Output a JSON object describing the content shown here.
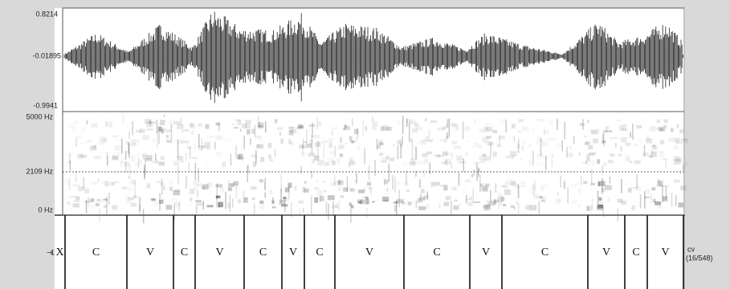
{
  "waveform": {
    "max_label": "0.8214",
    "mid_label": "-0.01895",
    "min_label": "-0.9941"
  },
  "spectrogram": {
    "top_label": "5000 Hz",
    "cursor_label": "2109 Hz",
    "bottom_label": "0 Hz"
  },
  "tier": {
    "number": "1",
    "name": "cv",
    "count": "(16/548)",
    "intervals": [
      "X",
      "C",
      "V",
      "C",
      "V",
      "C",
      "V",
      "C",
      "V",
      "C",
      "V",
      "C",
      "V",
      "C",
      "V"
    ]
  }
}
